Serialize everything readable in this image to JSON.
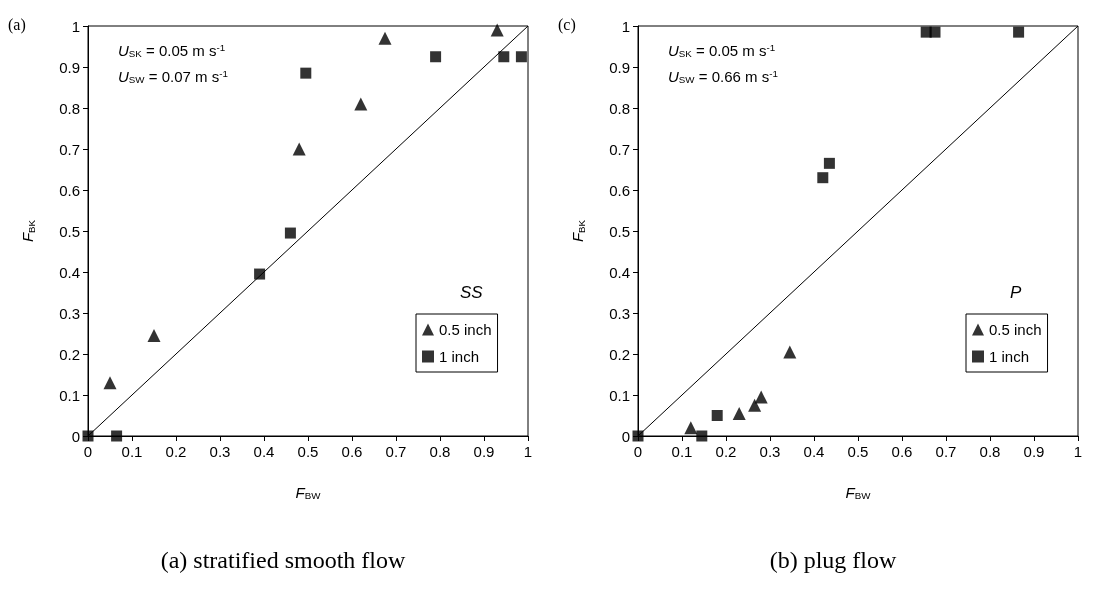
{
  "chart_data": [
    {
      "type": "scatter",
      "title": "(a)",
      "subtitle": "(a) stratified smooth flow",
      "xlabel": "F$_{BW}$",
      "ylabel": "F$_{BK}$",
      "legend_title": "SS",
      "annotations": [
        "U$_{SK}$ = 0.05 m s$^{-1}$",
        "U$_{SW}$ = 0.07 m s$^{-1}$"
      ],
      "xlim": [
        0,
        1
      ],
      "ylim": [
        0,
        1
      ],
      "xticks": [
        0,
        0.1,
        0.2,
        0.3,
        0.4,
        0.5,
        0.6,
        0.7,
        0.8,
        0.9,
        1
      ],
      "yticks": [
        0,
        0.1,
        0.2,
        0.3,
        0.4,
        0.5,
        0.6,
        0.7,
        0.8,
        0.9,
        1
      ],
      "grid": false,
      "legend": "bottom right",
      "series": [
        {
          "name": "0.5 inch",
          "color": "#000000",
          "marker": "triangle",
          "x": [
            0.05,
            0.15,
            0.48,
            0.62,
            0.675,
            0.93
          ],
          "values": [
            0.13,
            0.245,
            0.7,
            0.81,
            0.97,
            0.99
          ]
        },
        {
          "name": "1 inch",
          "color": "#000000",
          "marker": "square",
          "x": [
            0,
            0.065,
            0.39,
            0.46,
            0.495,
            0.79,
            0.945,
            0.985
          ],
          "values": [
            0,
            0,
            0.395,
            0.495,
            0.885,
            0.925,
            0.925,
            0.925
          ]
        },
        {
          "type": "line",
          "color": "#000000",
          "marker": "none",
          "x": [
            0,
            1
          ],
          "values": [
            0,
            1
          ]
        }
      ]
    },
    {
      "type": "scatter",
      "title": "(c)",
      "subtitle": "(b) plug flow",
      "xlabel": "F$_{BW}$",
      "ylabel": "F$_{BK}$",
      "legend_title": "P",
      "annotations": [
        "U$_{SK}$ = 0.05 m s$^{-1}$",
        "U$_{SW}$ = 0.66 m s$^{-1}$"
      ],
      "xlim": [
        0,
        1
      ],
      "ylim": [
        0,
        1
      ],
      "xticks": [
        0,
        0.1,
        0.2,
        0.3,
        0.4,
        0.5,
        0.6,
        0.7,
        0.8,
        0.9,
        1
      ],
      "yticks": [
        0,
        0.1,
        0.2,
        0.3,
        0.4,
        0.5,
        0.6,
        0.7,
        0.8,
        0.9,
        1
      ],
      "grid": false,
      "legend": "bottom right",
      "series": [
        {
          "name": "0.5 inch",
          "color": "#000000",
          "marker": "triangle",
          "x": [
            0.12,
            0.23,
            0.265,
            0.28,
            0.345
          ],
          "values": [
            0.02,
            0.055,
            0.075,
            0.095,
            0.205
          ]
        },
        {
          "name": "1 inch",
          "color": "#000000",
          "marker": "square",
          "x": [
            0,
            0.145,
            0.18,
            0.42,
            0.435,
            0.655,
            0.675,
            0.865
          ],
          "values": [
            0,
            0,
            0.05,
            0.63,
            0.665,
            0.985,
            0.985,
            0.985
          ]
        },
        {
          "type": "line",
          "color": "#000000",
          "marker": "none",
          "x": [
            0,
            1
          ],
          "values": [
            0,
            1
          ]
        }
      ]
    }
  ]
}
